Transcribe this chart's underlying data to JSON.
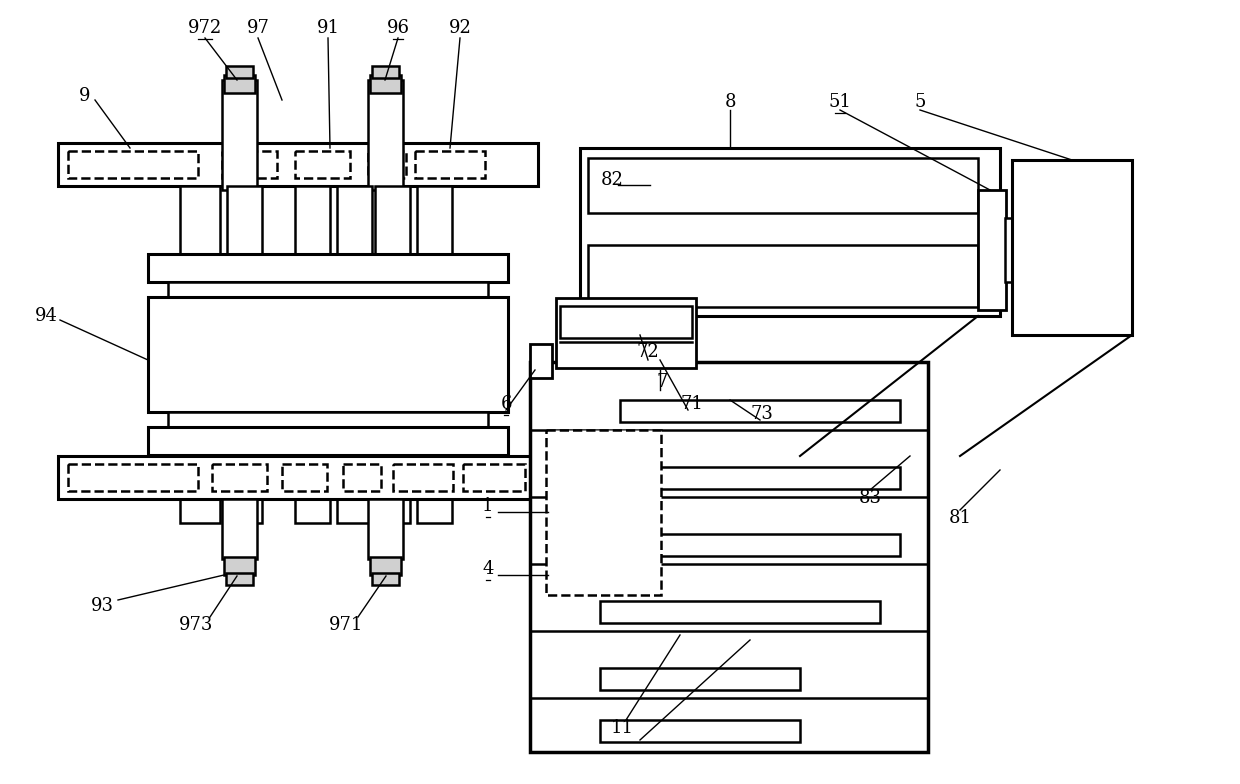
{
  "bg_color": "#ffffff",
  "line_color": "#000000",
  "lw": 1.8,
  "fig_width": 12.4,
  "fig_height": 7.84
}
